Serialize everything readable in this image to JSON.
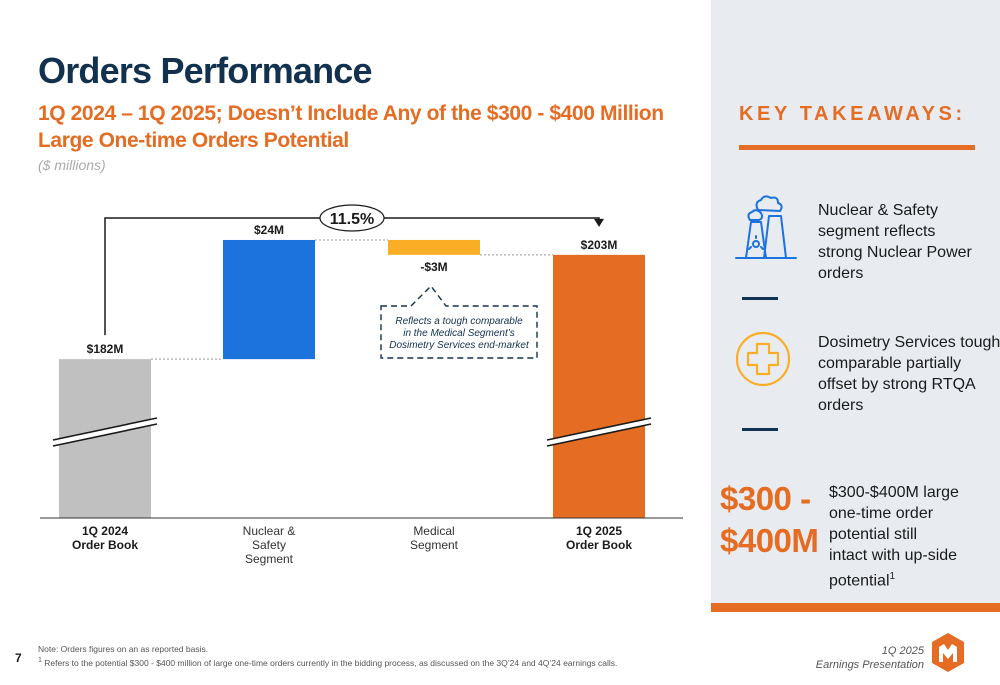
{
  "header": {
    "title": "Orders Performance",
    "subtitle": "1Q 2024 – 1Q 2025; Doesn’t Include Any of the $300 - $400 Million Large One-time Orders Potential",
    "units": "($ millions)"
  },
  "chart_data": {
    "type": "bar",
    "subtype": "waterfall",
    "categories": [
      "1Q 2024\nOrder Book",
      "Nuclear &\nSafety\nSegment",
      "Medical\nSegment",
      "1Q 2025\nOrder Book"
    ],
    "values": [
      182,
      24,
      -3,
      203
    ],
    "kinds": [
      "total",
      "delta",
      "delta",
      "total"
    ],
    "data_labels": [
      "$182M",
      "$24M",
      "-$3M",
      "$203M"
    ],
    "bold_categories": [
      true,
      false,
      false,
      true
    ],
    "broken_axis_bars": [
      true,
      false,
      false,
      true
    ],
    "colors": [
      "#c0c0c0",
      "#1c73de",
      "#f9ae25",
      "#e46c23"
    ],
    "growth_label": "11.5%",
    "annotation": "Reflects a tough comparable in the Medical Segment’s Dosimetry Services end-market",
    "display_min": 150,
    "display_max": 207
  },
  "takeaways": {
    "title": "KEY TAKEAWAYS:",
    "items": [
      {
        "icon": "nuclear-plant-icon",
        "text": "Nuclear & Safety segment reflects strong Nuclear Power orders"
      },
      {
        "icon": "medical-cross-icon",
        "text": "Dosimetry Services tough comparable partially offset by strong RTQA orders"
      }
    ],
    "highlight_value": "$300 - $400M",
    "highlight_text": "$300-$400M large one-time order potential still intact with up-side potential",
    "highlight_sup": "1"
  },
  "footer": {
    "page_number": "7",
    "note": "Note: Orders figures on an as reported basis.",
    "footnote_mark": "1",
    "footnote": " Refers to the potential $300 - $400 million of large one-time orders currently in the bidding process, as discussed on the 3Q’24 and 4Q’24 earnings calls.",
    "deck_period": "1Q 2025",
    "deck_name": "Earnings Presentation"
  },
  "colors": {
    "navy": "#12314f",
    "orange": "#e46c23",
    "panel": "#e8ecf1"
  }
}
